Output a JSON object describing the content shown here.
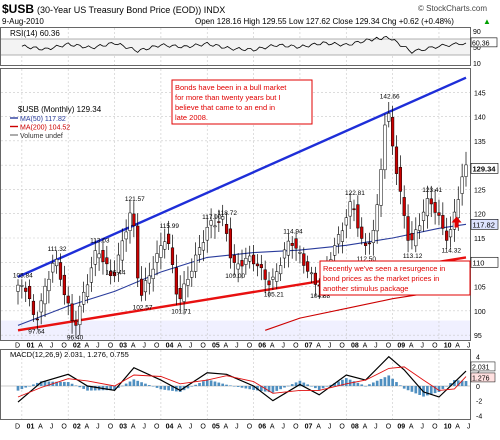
{
  "header": {
    "symbol": "$USB",
    "description": "(30-Year US Treasury Bond Price (EOD)) INDX",
    "watermark": "© StockCharts.com",
    "date": "9-Aug-2010",
    "quote": "Open 128.16  High 129.55  Low 127.62  Close 129.34  Chg +0.62 (+0.48%)",
    "quote_arrow": "▲"
  },
  "colors": {
    "up_candle": "#ffffff",
    "down_candle": "#cc0000",
    "ma50": "#2a3c9c",
    "ma200": "#cc0000",
    "trend_upper": "#1e2ed8",
    "trend_lower": "#e81010",
    "histogram": "#4f8fc0",
    "annotation_text": "#e00000",
    "annotation_border": "#e00000",
    "grid": "#c8c8c8",
    "volume_band": "#e6e6ff"
  },
  "chart_data": [
    {
      "type": "line",
      "panel": "rsi",
      "title": "RSI(14) 60.36",
      "ylim": [
        10,
        90
      ],
      "yticks": [
        10,
        50,
        90
      ],
      "levels": [
        30,
        70
      ],
      "last_value_label": "60.36",
      "x": [
        "2001-01",
        "2001-07",
        "2002-01",
        "2002-07",
        "2003-01",
        "2003-07",
        "2004-01",
        "2004-07",
        "2005-01",
        "2005-07",
        "2006-01",
        "2006-07",
        "2007-01",
        "2007-07",
        "2008-01",
        "2008-07",
        "2008-12",
        "2009-06",
        "2010-01",
        "2010-08"
      ],
      "values": [
        52,
        44,
        57,
        48,
        60,
        40,
        55,
        50,
        58,
        46,
        43,
        55,
        50,
        60,
        55,
        68,
        74,
        38,
        52,
        60
      ]
    },
    {
      "type": "candlestick",
      "panel": "price",
      "title": "$USB (Monthly) 129.34",
      "legend": [
        {
          "name": "MA(50) 117.82",
          "color": "#2a3c9c"
        },
        {
          "name": "MA(200) 104.52",
          "color": "#cc0000"
        },
        {
          "name": "Volume undef",
          "color": "#888888"
        }
      ],
      "legend_position": "top-left",
      "ylim": [
        94,
        150
      ],
      "yticks": [
        95,
        100,
        105,
        110,
        115,
        120,
        125,
        130,
        135,
        140,
        145
      ],
      "price_tags": [
        {
          "label": "129.34",
          "value": 129.34
        },
        {
          "label": "117.82",
          "value": 117.82
        },
        {
          "label": "110",
          "value": 110
        }
      ],
      "xticks": [
        "D",
        "01",
        "A",
        "J",
        "O",
        "02",
        "A",
        "J",
        "O",
        "03",
        "A",
        "J",
        "O",
        "04",
        "A",
        "J",
        "O",
        "05",
        "A",
        "J",
        "O",
        "06",
        "A",
        "J",
        "O",
        "07",
        "A",
        "J",
        "O",
        "08",
        "A",
        "J",
        "O",
        "09",
        "A",
        "J",
        "O",
        "10",
        "A",
        "J"
      ],
      "anchors": [
        {
          "t": "2000-12",
          "v": 104
        },
        {
          "t": "2001-02",
          "v": 106
        },
        {
          "t": "2001-05",
          "v": 97.64
        },
        {
          "t": "2001-10",
          "v": 111.32
        },
        {
          "t": "2002-03",
          "v": 96.4
        },
        {
          "t": "2002-09",
          "v": 113.03
        },
        {
          "t": "2003-01",
          "v": 106.44
        },
        {
          "t": "2003-06",
          "v": 121.57
        },
        {
          "t": "2003-08",
          "v": 102.57
        },
        {
          "t": "2004-03",
          "v": 115.99
        },
        {
          "t": "2004-06",
          "v": 101.71
        },
        {
          "t": "2005-02",
          "v": 117.9
        },
        {
          "t": "2005-06",
          "v": 118.72
        },
        {
          "t": "2005-08",
          "v": 109.0
        },
        {
          "t": "2006-01",
          "v": 111
        },
        {
          "t": "2006-06",
          "v": 105.21
        },
        {
          "t": "2006-11",
          "v": 114.94
        },
        {
          "t": "2007-06",
          "v": 104.88
        },
        {
          "t": "2007-12",
          "v": 116
        },
        {
          "t": "2008-03",
          "v": 122.81
        },
        {
          "t": "2008-06",
          "v": 112.5
        },
        {
          "t": "2008-09",
          "v": 117
        },
        {
          "t": "2008-12",
          "v": 142.66
        },
        {
          "t": "2009-03",
          "v": 126
        },
        {
          "t": "2009-06",
          "v": 113.12
        },
        {
          "t": "2009-11",
          "v": 123.41
        },
        {
          "t": "2010-04",
          "v": 114.32
        },
        {
          "t": "2010-08",
          "v": 129.34
        }
      ],
      "annotations_values": [
        {
          "label": "97.64",
          "t": "2001-05",
          "v": 97.64
        },
        {
          "label": "105.84",
          "t": "2001-01",
          "v": 105.84
        },
        {
          "label": "111.32",
          "t": "2001-10",
          "v": 111.32
        },
        {
          "label": "96.40",
          "t": "2002-03",
          "v": 96.4
        },
        {
          "label": "113.03",
          "t": "2002-09",
          "v": 113.03
        },
        {
          "label": "106.44",
          "t": "2003-01",
          "v": 106.44
        },
        {
          "label": "121.57",
          "t": "2003-06",
          "v": 121.57
        },
        {
          "label": "102.57",
          "t": "2003-08",
          "v": 102.57
        },
        {
          "label": "115.99",
          "t": "2004-03",
          "v": 115.99
        },
        {
          "label": "101.71",
          "t": "2004-06",
          "v": 101.71
        },
        {
          "label": "117.90",
          "t": "2005-02",
          "v": 117.9
        },
        {
          "label": "118.72",
          "t": "2005-06",
          "v": 118.72
        },
        {
          "label": "109.00",
          "t": "2005-08",
          "v": 109.0
        },
        {
          "label": "105.21",
          "t": "2006-06",
          "v": 105.21
        },
        {
          "label": "114.94",
          "t": "2006-11",
          "v": 114.94
        },
        {
          "label": "104.88",
          "t": "2007-06",
          "v": 104.88
        },
        {
          "label": "122.81",
          "t": "2008-03",
          "v": 122.81
        },
        {
          "label": "112.50",
          "t": "2008-06",
          "v": 112.5
        },
        {
          "label": "142.66",
          "t": "2008-12",
          "v": 142.66
        },
        {
          "label": "113.12",
          "t": "2009-06",
          "v": 113.12
        },
        {
          "label": "123.41",
          "t": "2009-11",
          "v": 123.41
        },
        {
          "label": "114.32",
          "t": "2010-04",
          "v": 114.32
        }
      ],
      "ma50": {
        "label": "MA(50) 117.82",
        "t": [
          "2000-12",
          "2002-01",
          "2003-01",
          "2004-01",
          "2005-01",
          "2006-01",
          "2007-01",
          "2008-01",
          "2009-01",
          "2010-01",
          "2010-08"
        ],
        "values": [
          97,
          101,
          104,
          108,
          111,
          112,
          112.5,
          113.5,
          115,
          117,
          117.82
        ]
      },
      "ma200": {
        "label": "MA(200) 104.52",
        "t": [
          "2006-04",
          "2007-01",
          "2008-01",
          "2009-01",
          "2010-01",
          "2010-08"
        ],
        "values": [
          96,
          98.5,
          100.5,
          102.5,
          104,
          104.52
        ]
      },
      "trendlines": [
        {
          "name": "upper",
          "from": {
            "t": "2000-12",
            "v": 107
          },
          "to": {
            "t": "2010-08",
            "v": 148
          }
        },
        {
          "name": "lower",
          "from": {
            "t": "2000-12",
            "v": 96
          },
          "to": {
            "t": "2010-08",
            "v": 111
          }
        }
      ],
      "callouts": [
        {
          "text": "Bonds have been in a bull market for more than twenty years but I believe that came to an end in late 2008.",
          "boxed": true
        },
        {
          "text": "Recently we've seen a resurgence in bond prices as the market prices in another stimulus package",
          "boxed": true
        }
      ]
    },
    {
      "type": "line",
      "panel": "macd",
      "title": "MACD(12,26,9) 2.031, 1.276, 0.755",
      "ylim": [
        -4.5,
        4.5
      ],
      "yticks": [
        -4,
        -2,
        0,
        2,
        4
      ],
      "value_tags": [
        "2.031",
        "1.276"
      ],
      "xticks": [
        "D",
        "01",
        "A",
        "J",
        "O",
        "02",
        "A",
        "J",
        "O",
        "03",
        "A",
        "J",
        "O",
        "04",
        "A",
        "J",
        "O",
        "05",
        "A",
        "J",
        "O",
        "06",
        "A",
        "J",
        "O",
        "07",
        "A",
        "J",
        "O",
        "08",
        "A",
        "J",
        "O",
        "09",
        "A",
        "J",
        "O",
        "10",
        "A",
        "J"
      ],
      "series": [
        {
          "name": "MACD",
          "color": "#000000",
          "t": [
            "2000-12",
            "2001-06",
            "2002-01",
            "2002-06",
            "2003-01",
            "2003-06",
            "2004-01",
            "2004-06",
            "2005-01",
            "2005-06",
            "2006-01",
            "2006-06",
            "2007-01",
            "2007-06",
            "2008-01",
            "2008-06",
            "2008-12",
            "2009-04",
            "2009-09",
            "2010-01",
            "2010-05",
            "2010-08"
          ],
          "values": [
            -2.2,
            0.5,
            1.6,
            0,
            -0.6,
            2.5,
            0.8,
            -0.6,
            1.8,
            1.6,
            0,
            -2,
            0.2,
            -1.2,
            1.5,
            0.8,
            4.0,
            2.2,
            -0.8,
            -1.5,
            0.5,
            2.031
          ]
        },
        {
          "name": "Signal",
          "color": "#e01010",
          "t": [
            "2000-12",
            "2001-06",
            "2002-01",
            "2002-06",
            "2003-01",
            "2003-06",
            "2004-01",
            "2004-06",
            "2005-01",
            "2005-06",
            "2006-01",
            "2006-06",
            "2007-01",
            "2007-06",
            "2008-01",
            "2008-06",
            "2008-12",
            "2009-04",
            "2009-09",
            "2010-01",
            "2010-05",
            "2010-08"
          ],
          "values": [
            -1.5,
            -0.2,
            1.0,
            0.7,
            0,
            1.5,
            1.3,
            0.3,
            0.8,
            1.4,
            0.6,
            -1.0,
            -0.6,
            -0.6,
            0.3,
            0.8,
            2.4,
            2.6,
            0.8,
            -0.6,
            -0.4,
            1.276
          ]
        }
      ]
    }
  ]
}
